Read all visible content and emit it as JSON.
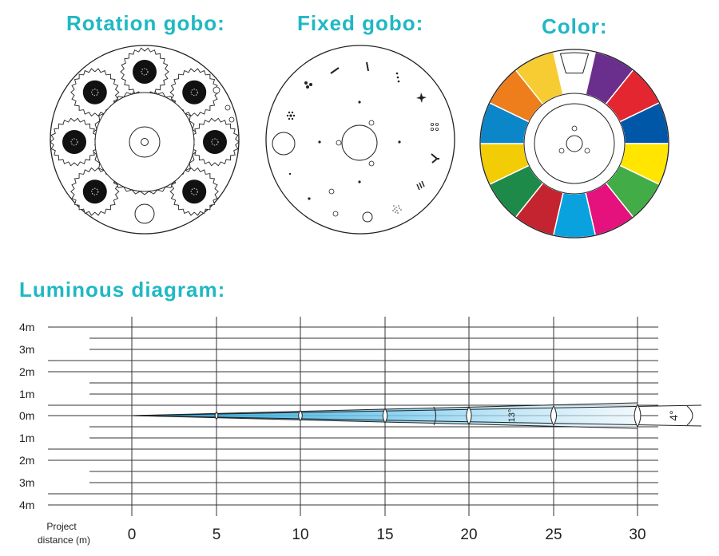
{
  "headings": {
    "rotation_gobo": "Rotation gobo:",
    "fixed_gobo": "Fixed gobo:",
    "color": "Color:",
    "luminous": "Luminous diagram:"
  },
  "color_wheel": {
    "segments": [
      "#6a2f8c",
      "#e3262f",
      "#0057a8",
      "#ffe500",
      "#42ad46",
      "#e5117d",
      "#0aa2de",
      "#c4242f",
      "#1e8a4a",
      "#f2cc05",
      "#0b86c8",
      "#ee7d1b",
      "#f6cc32"
    ],
    "open_slot": "#ffffff"
  },
  "luminous": {
    "y_labels": [
      "4m",
      "3m",
      "2m",
      "1m",
      "0m",
      "1m",
      "2m",
      "3m",
      "4m"
    ],
    "x_ticks": [
      "0",
      "5",
      "10",
      "15",
      "20",
      "25",
      "30"
    ],
    "x_title_line1": "Project",
    "x_title_line2": "distance (m)",
    "beam_angle_narrow": "4°",
    "beam_angle_wide": "13°",
    "beam_color": "#1aa0d8"
  }
}
